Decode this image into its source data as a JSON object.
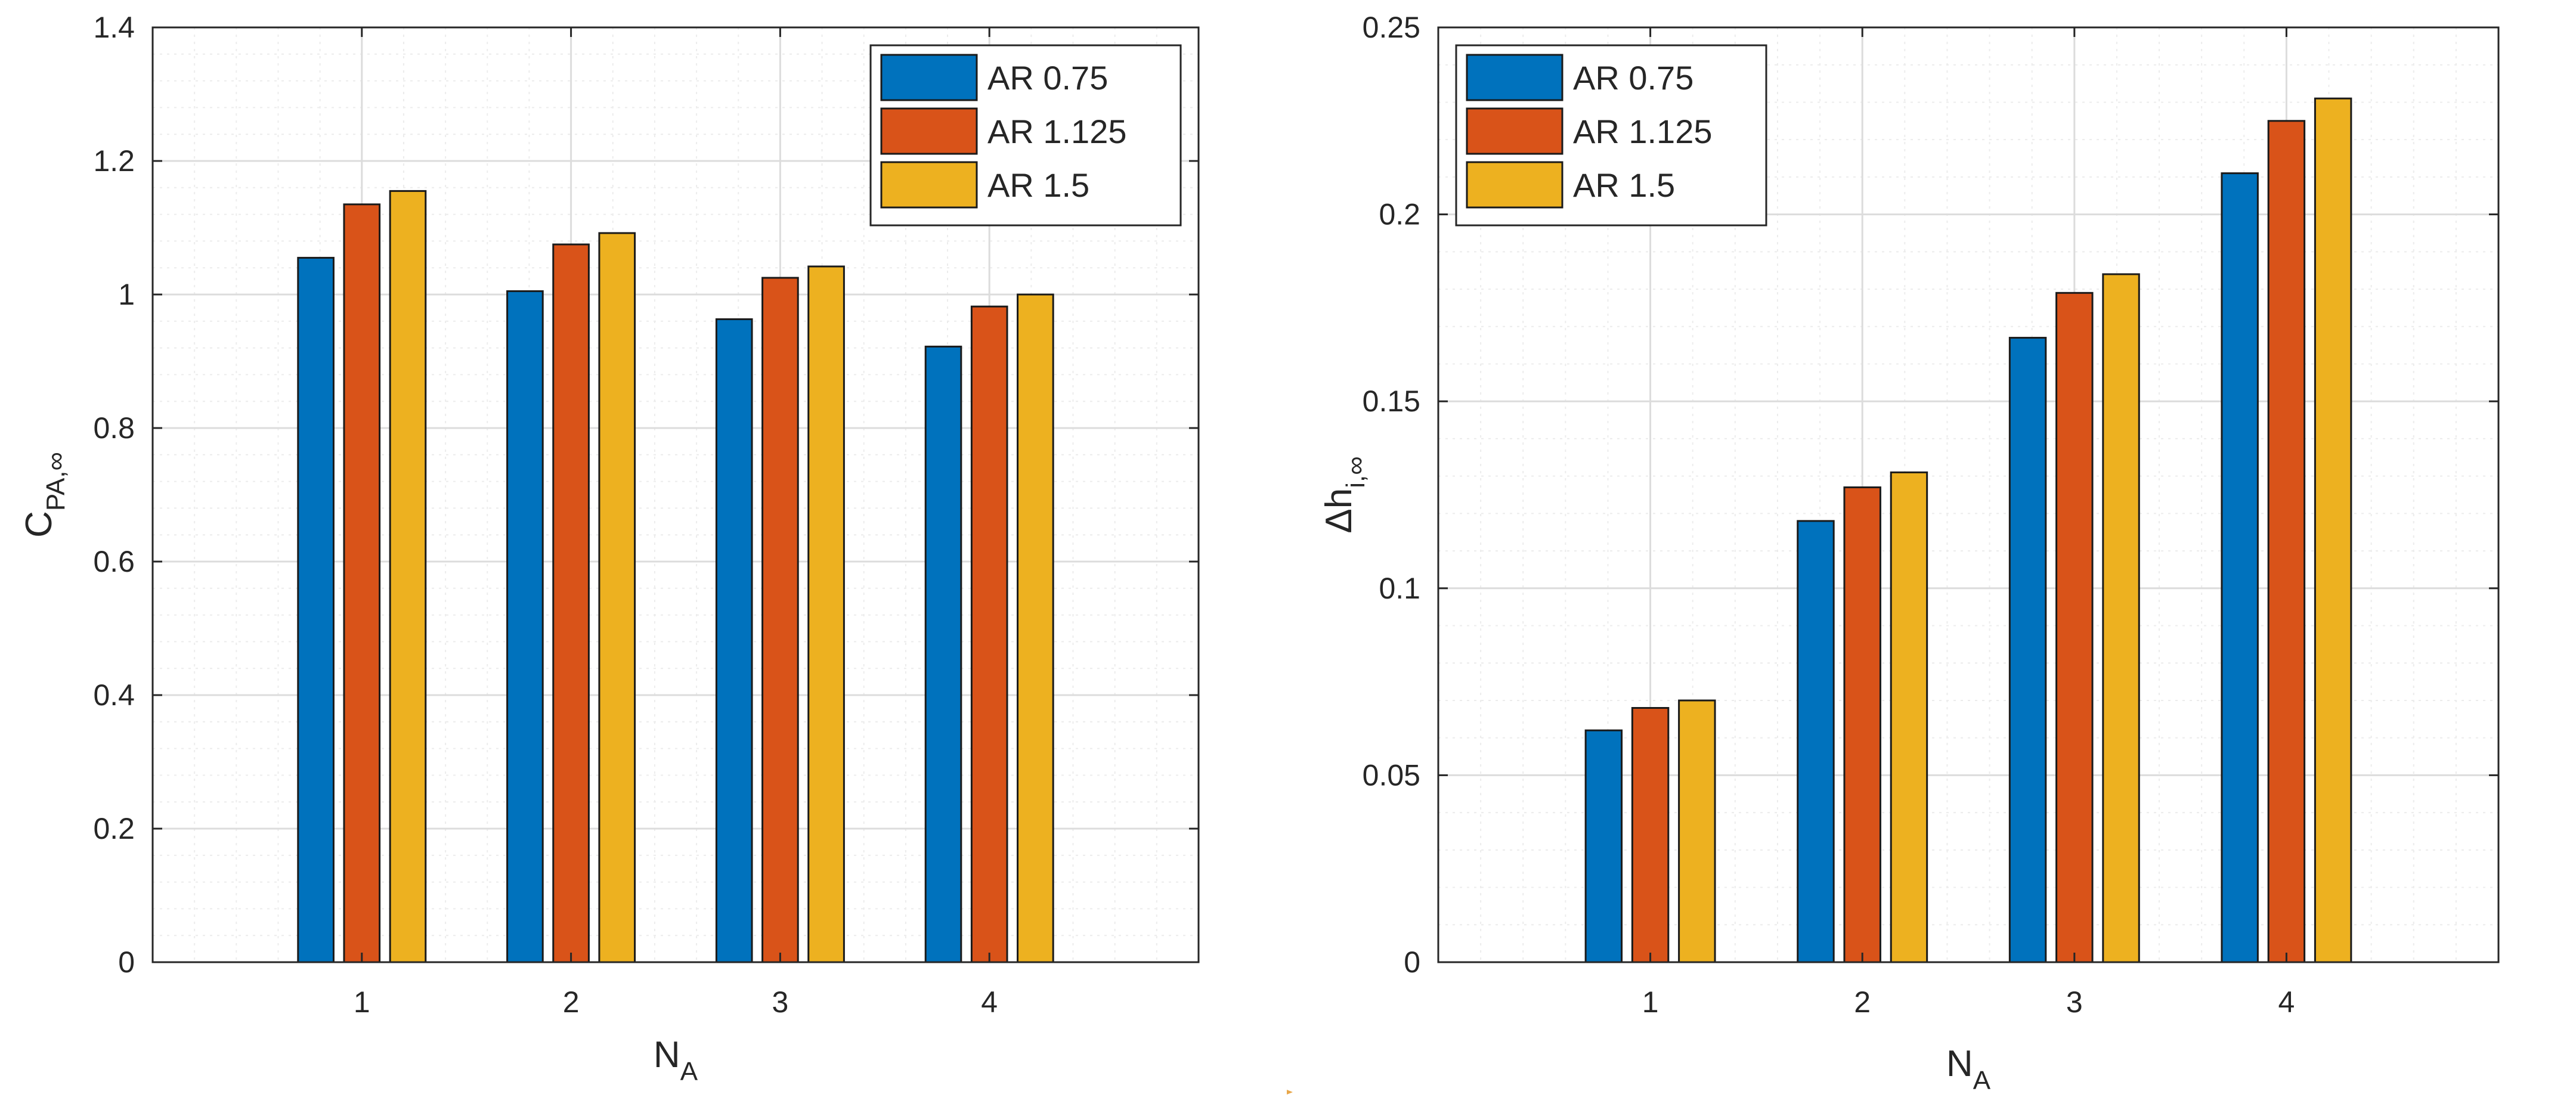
{
  "chart_data": [
    {
      "type": "bar",
      "categories": [
        "1",
        "2",
        "3",
        "4"
      ],
      "series": [
        {
          "name": "AR 0.75",
          "values": [
            1.055,
            1.005,
            0.963,
            0.922
          ]
        },
        {
          "name": "AR 1.125",
          "values": [
            1.135,
            1.075,
            1.025,
            0.982
          ]
        },
        {
          "name": "AR 1.5",
          "values": [
            1.155,
            1.092,
            1.042,
            1.0
          ]
        }
      ],
      "xlabel": {
        "main": "N",
        "sub": "A"
      },
      "ylabel": {
        "main": "C",
        "sub": "PA,∞"
      },
      "ylim": [
        0,
        1.4
      ],
      "yticks": [
        "0",
        "0.2",
        "0.4",
        "0.6",
        "0.8",
        "1",
        "1.2",
        "1.4"
      ],
      "ytick_values": [
        0,
        0.2,
        0.4,
        0.6,
        0.8,
        1.0,
        1.2,
        1.4
      ],
      "grid": true,
      "minor_grid": true,
      "legend_position": "top-right"
    },
    {
      "type": "bar",
      "categories": [
        "1",
        "2",
        "3",
        "4"
      ],
      "series": [
        {
          "name": "AR 0.75",
          "values": [
            0.062,
            0.118,
            0.167,
            0.211
          ]
        },
        {
          "name": "AR 1.125",
          "values": [
            0.068,
            0.127,
            0.179,
            0.225
          ]
        },
        {
          "name": "AR 1.5",
          "values": [
            0.07,
            0.131,
            0.184,
            0.231
          ]
        }
      ],
      "xlabel": {
        "main": "N",
        "sub": "A"
      },
      "ylabel": {
        "main": "Δh",
        "sub": "i,∞"
      },
      "ylim": [
        0,
        0.25
      ],
      "yticks": [
        "0",
        "0.05",
        "0.1",
        "0.15",
        "0.2",
        "0.25"
      ],
      "ytick_values": [
        0,
        0.05,
        0.1,
        0.15,
        0.2,
        0.25
      ],
      "grid": true,
      "minor_grid": true,
      "legend_position": "top-left"
    }
  ],
  "colors": {
    "series": [
      "#0072BD",
      "#D95319",
      "#EDB120"
    ],
    "grid_major": "#dcdcdc",
    "grid_minor": "#ececec",
    "axis": "#262626"
  }
}
